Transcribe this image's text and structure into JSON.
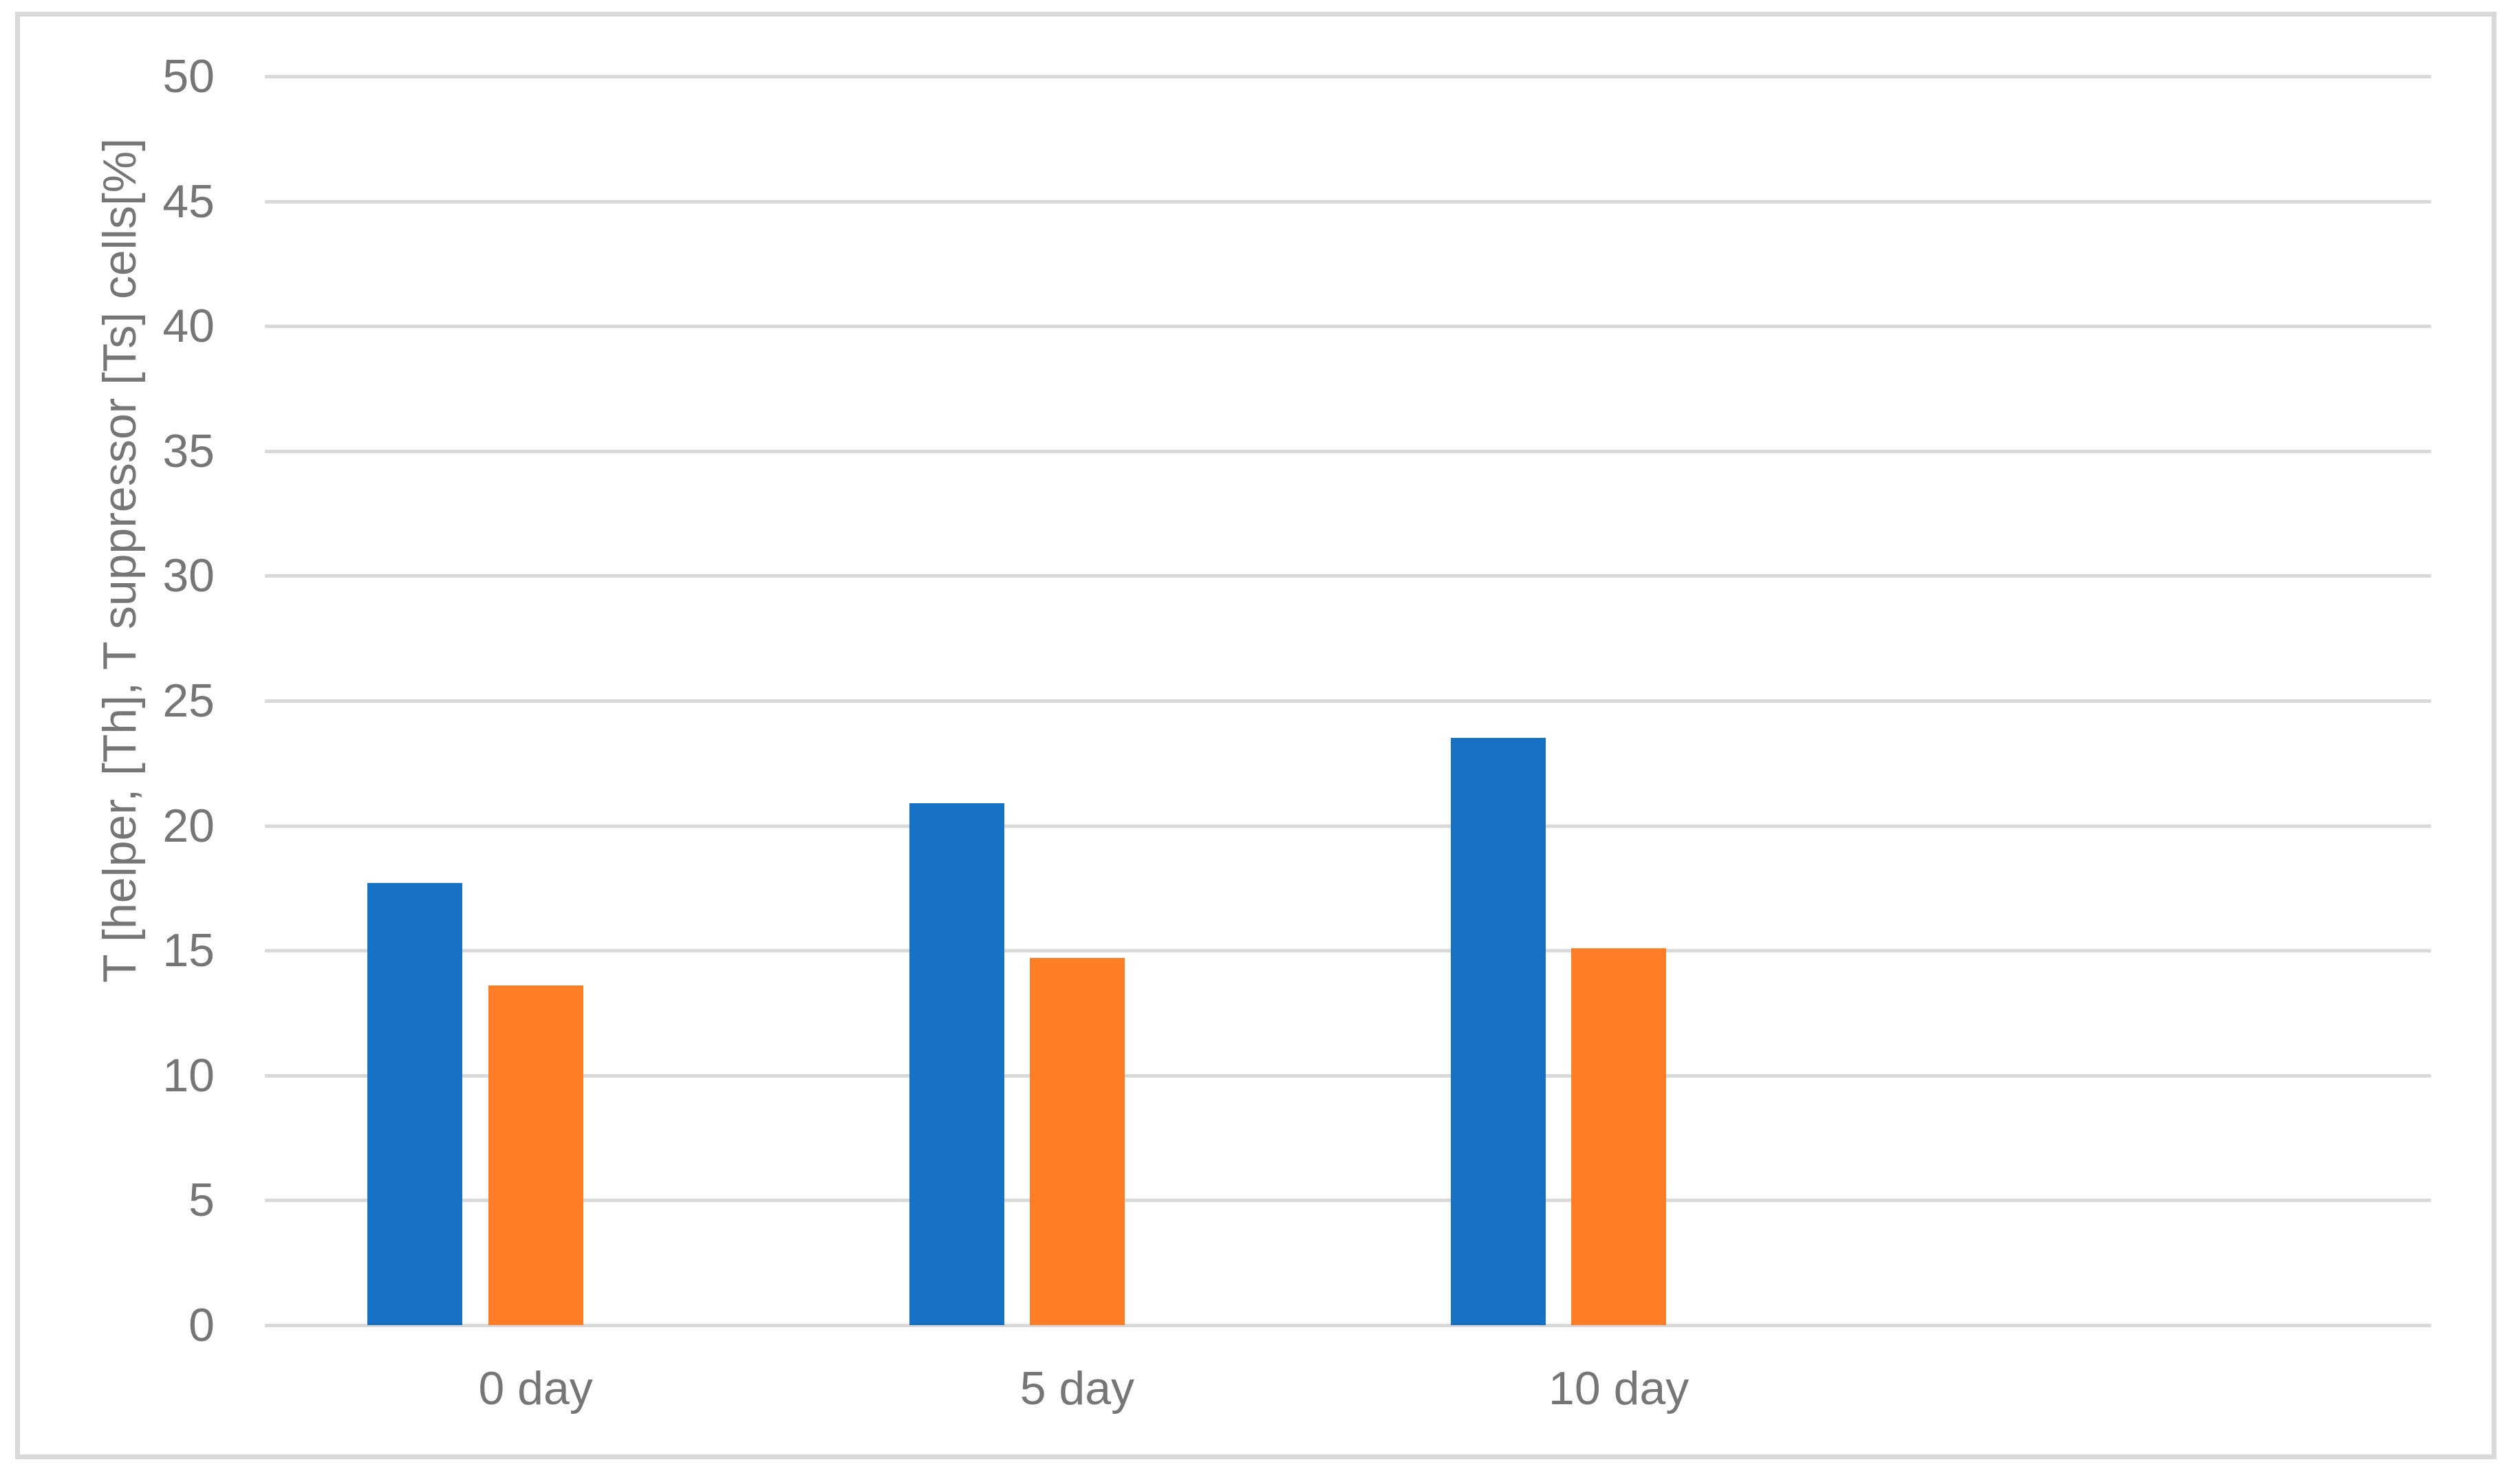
{
  "chart_data": {
    "type": "bar",
    "title": "",
    "categories": [
      "0 day",
      "5 day",
      "10 day"
    ],
    "series": [
      {
        "key": "th",
        "name": "T helper [Th]",
        "color": "#1772C6",
        "values": [
          17.7,
          20.9,
          23.5
        ]
      },
      {
        "key": "ts",
        "name": "T suppressor [Ts]",
        "color": "#FF7D27",
        "values": [
          13.6,
          14.7,
          15.1
        ]
      }
    ],
    "xlabel": "",
    "ylabel": "T [helper, [Th], T suppressor [Ts] cells[%]",
    "ylim": [
      0,
      50
    ],
    "yticks": [
      0,
      5,
      10,
      15,
      20,
      25,
      30,
      35,
      40,
      45,
      50
    ],
    "grid": true,
    "legend": "none",
    "x_slots": 4,
    "gridline_color": "#D9D9D9",
    "axis_text_color": "#767676",
    "frame_border_color": "#D9D9D9",
    "background_color": "#FFFFFF"
  }
}
